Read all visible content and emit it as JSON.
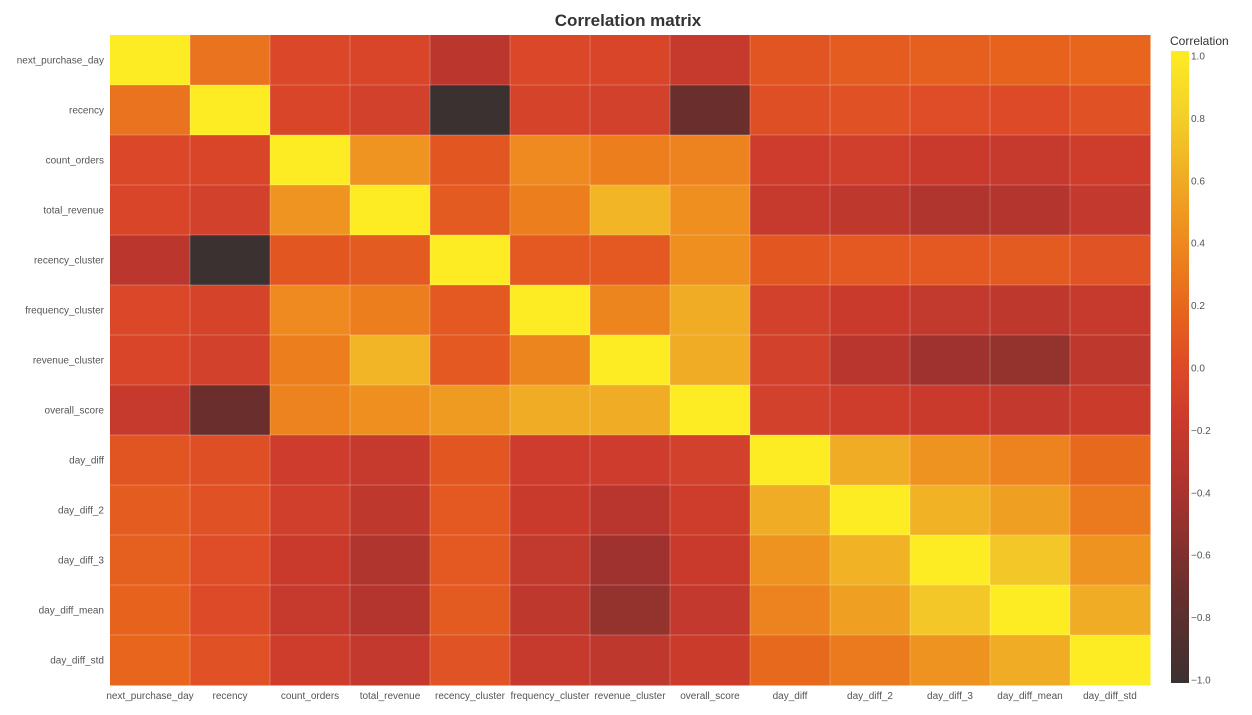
{
  "chart_data": {
    "type": "heatmap",
    "title": "Correlation matrix",
    "colorbar": {
      "title": "Correlation",
      "range": [
        -1.0,
        1.0
      ],
      "tick_labels": [
        "1.0",
        "0.8",
        "0.6",
        "0.4",
        "0.2",
        "0.0",
        "−0.2",
        "−0.4",
        "−0.6",
        "−0.8",
        "−1.0"
      ],
      "tick_values": [
        1.0,
        0.8,
        0.6,
        0.4,
        0.2,
        0.0,
        -0.2,
        -0.4,
        -0.6,
        -0.8,
        -1.0
      ],
      "colorscale": [
        [
          0.0,
          "#3b3131"
        ],
        [
          0.15,
          "#6a2f2d"
        ],
        [
          0.3,
          "#a9332f"
        ],
        [
          0.42,
          "#cc3b2c"
        ],
        [
          0.5,
          "#dd4a28"
        ],
        [
          0.58,
          "#e6621d"
        ],
        [
          0.7,
          "#ee8a1f"
        ],
        [
          0.8,
          "#f0ac24"
        ],
        [
          0.9,
          "#f4d028"
        ],
        [
          1.0,
          "#fdec24"
        ]
      ]
    },
    "x_labels": [
      "next_purchase_day",
      "recency",
      "count_orders",
      "total_revenue",
      "recency_cluster",
      "frequency_cluster",
      "revenue_cluster",
      "overall_score",
      "day_diff",
      "day_diff_2",
      "day_diff_3",
      "day_diff_mean",
      "day_diff_std"
    ],
    "y_labels": [
      "next_purchase_day",
      "recency",
      "count_orders",
      "total_revenue",
      "recency_cluster",
      "frequency_cluster",
      "revenue_cluster",
      "overall_score",
      "day_diff",
      "day_diff_2",
      "day_diff_3",
      "day_diff_mean",
      "day_diff_std"
    ],
    "z": [
      [
        1.0,
        0.26,
        -0.02,
        -0.05,
        -0.28,
        -0.03,
        -0.05,
        -0.2,
        0.07,
        0.12,
        0.14,
        0.16,
        0.18
      ],
      [
        0.26,
        1.0,
        -0.05,
        -0.1,
        -1.0,
        -0.08,
        -0.1,
        -0.7,
        0.03,
        0.05,
        0.02,
        0.0,
        0.05
      ],
      [
        -0.02,
        -0.05,
        1.0,
        0.46,
        0.08,
        0.4,
        0.33,
        0.36,
        -0.15,
        -0.12,
        -0.18,
        -0.2,
        -0.14
      ],
      [
        -0.05,
        -0.1,
        0.46,
        1.0,
        0.11,
        0.33,
        0.65,
        0.43,
        -0.2,
        -0.25,
        -0.35,
        -0.33,
        -0.22
      ],
      [
        -0.28,
        -1.0,
        0.08,
        0.11,
        1.0,
        0.1,
        0.1,
        0.43,
        0.08,
        0.1,
        0.1,
        0.11,
        0.06
      ],
      [
        -0.03,
        -0.08,
        0.4,
        0.33,
        0.1,
        1.0,
        0.37,
        0.6,
        -0.1,
        -0.18,
        -0.23,
        -0.25,
        -0.2
      ],
      [
        -0.05,
        -0.1,
        0.33,
        0.65,
        0.1,
        0.37,
        1.0,
        0.6,
        -0.1,
        -0.3,
        -0.45,
        -0.5,
        -0.25
      ],
      [
        -0.2,
        -0.7,
        0.36,
        0.43,
        0.5,
        0.6,
        0.6,
        1.0,
        -0.1,
        -0.14,
        -0.18,
        -0.22,
        -0.17
      ],
      [
        0.07,
        0.03,
        -0.15,
        -0.2,
        0.08,
        -0.15,
        -0.15,
        -0.1,
        1.0,
        0.6,
        0.45,
        0.36,
        0.2
      ],
      [
        0.12,
        0.05,
        -0.12,
        -0.25,
        0.1,
        -0.18,
        -0.3,
        -0.14,
        0.6,
        1.0,
        0.64,
        0.53,
        0.3
      ],
      [
        0.14,
        0.02,
        -0.18,
        -0.35,
        0.1,
        -0.23,
        -0.45,
        -0.18,
        0.45,
        0.64,
        1.0,
        0.75,
        0.45
      ],
      [
        0.16,
        0.0,
        -0.2,
        -0.33,
        0.11,
        -0.25,
        -0.5,
        -0.22,
        0.36,
        0.53,
        0.75,
        1.0,
        0.6
      ],
      [
        0.18,
        0.05,
        -0.14,
        -0.22,
        0.06,
        -0.2,
        -0.25,
        -0.17,
        0.2,
        0.3,
        0.45,
        0.6,
        1.0
      ]
    ]
  }
}
